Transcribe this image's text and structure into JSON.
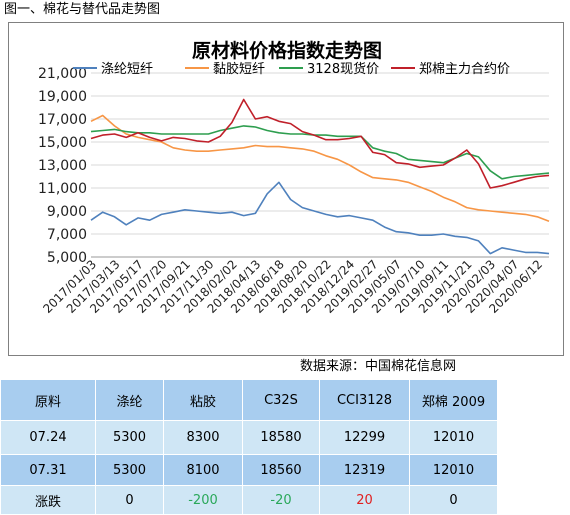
{
  "figure_title": "图一、棉花与替代品走势图",
  "source_note": "数据来源：中国棉花信息网",
  "chart_data": {
    "type": "line",
    "title": "原材料价格指数走势图",
    "ylim": [
      5000,
      21000
    ],
    "y_ticks": [
      "5,000",
      "7,000",
      "9,000",
      "11,000",
      "13,000",
      "15,000",
      "17,000",
      "19,000",
      "21,000"
    ],
    "y_tick_values": [
      5000,
      7000,
      9000,
      11000,
      13000,
      15000,
      17000,
      19000,
      21000
    ],
    "x_tick_labels": [
      "2017/01/03",
      "2017/03/13",
      "2017/05/17",
      "2017/07/20",
      "2017/09/21",
      "2017/11/30",
      "2018/02/02",
      "2018/04/13",
      "2018/06/18",
      "2018/08/20",
      "2018/10/22",
      "2018/12/24",
      "2019/02/27",
      "2019/05/07",
      "2019/07/10",
      "2019/09/11",
      "2019/11/21",
      "2020/02/03",
      "2020/04/07",
      "2020/06/12"
    ],
    "grid": "horizontal",
    "legend_position": "top",
    "series": [
      {
        "name": "涤纶短纤",
        "color": "#4f81bd",
        "values": [
          8200,
          8900,
          8500,
          7800,
          8400,
          8200,
          8700,
          8900,
          9100,
          9000,
          8900,
          8800,
          8900,
          8600,
          8800,
          10500,
          11500,
          10000,
          9300,
          9000,
          8700,
          8500,
          8600,
          8400,
          8200,
          7600,
          7200,
          7100,
          6900,
          6900,
          7000,
          6800,
          6700,
          6400,
          5300,
          5800,
          5600,
          5400,
          5400,
          5300
        ]
      },
      {
        "name": "黏胶短纤",
        "color": "#f79646",
        "values": [
          16800,
          17300,
          16400,
          15700,
          15400,
          15200,
          15000,
          14500,
          14300,
          14200,
          14200,
          14300,
          14400,
          14500,
          14700,
          14600,
          14600,
          14500,
          14400,
          14200,
          13800,
          13500,
          13000,
          12400,
          11900,
          11800,
          11700,
          11500,
          11100,
          10700,
          10200,
          9800,
          9300,
          9100,
          9000,
          8900,
          8800,
          8700,
          8500,
          8100
        ]
      },
      {
        "name": "3128现货价",
        "color": "#2e9e4f",
        "values": [
          15900,
          16000,
          16100,
          15900,
          15800,
          15800,
          15700,
          15700,
          15700,
          15700,
          15700,
          16000,
          16200,
          16400,
          16300,
          16000,
          15800,
          15700,
          15700,
          15600,
          15600,
          15500,
          15500,
          15500,
          14500,
          14200,
          14000,
          13500,
          13400,
          13300,
          13200,
          13600,
          14000,
          13700,
          12500,
          11800,
          12000,
          12100,
          12200,
          12300
        ]
      },
      {
        "name": "郑棉主力合约价",
        "color": "#c0202a",
        "values": [
          15300,
          15600,
          15700,
          15400,
          15800,
          15400,
          15100,
          15400,
          15300,
          15100,
          15000,
          15500,
          16700,
          18700,
          17000,
          17200,
          16800,
          16600,
          15900,
          15600,
          15200,
          15200,
          15300,
          15500,
          14100,
          13900,
          13200,
          13100,
          12800,
          12900,
          13000,
          13600,
          14300,
          13100,
          11000,
          11200,
          11500,
          11800,
          12000,
          12100
        ]
      }
    ]
  },
  "table": {
    "headers": [
      "原料",
      "涤纶",
      "粘胶",
      "C32S",
      "CCI3128",
      "郑棉 2009"
    ],
    "rows": [
      {
        "label": "07.24",
        "values": [
          "5300",
          "8300",
          "18580",
          "12299",
          "12010"
        ]
      },
      {
        "label": "07.31",
        "values": [
          "5300",
          "8100",
          "18560",
          "12319",
          "12010"
        ]
      },
      {
        "label": "涨跌",
        "values": [
          "0",
          "-200",
          "-20",
          "20",
          "0"
        ]
      }
    ]
  }
}
